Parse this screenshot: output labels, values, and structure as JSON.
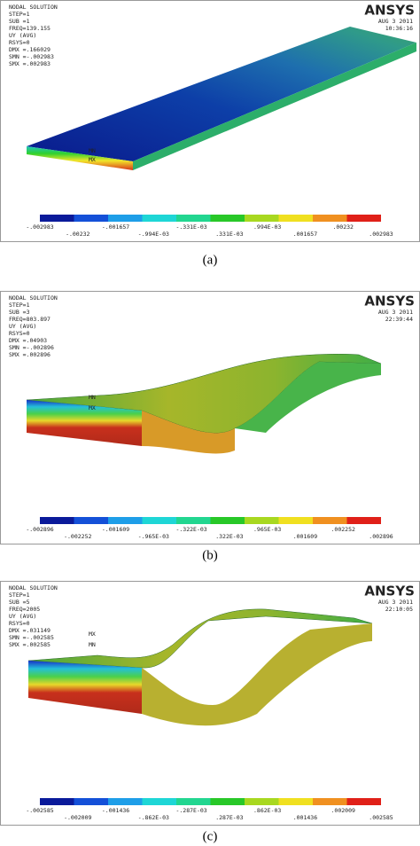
{
  "panels": [
    {
      "caption": "(a)",
      "logo": "ANSYS",
      "date": "AUG 3 2011",
      "time": "10:36:16",
      "header": [
        "NODAL SOLUTION",
        "STEP=1",
        "SUB =1",
        "FREQ=139.155",
        "UY (AVG)",
        "RSYS=0",
        "DMX =.166029",
        "SMN =-.002983",
        "SMX =.002983"
      ],
      "node_labels": [
        "MN",
        "MX"
      ],
      "legend": [
        "-.002983",
        "-.00232",
        "-.001657",
        "-.994E-03",
        "-.331E-03",
        ".331E-03",
        ".994E-03",
        ".001657",
        ".00232",
        ".002983"
      ]
    },
    {
      "caption": "(b)",
      "logo": "ANSYS",
      "date": "AUG 3 2011",
      "time": "22:39:44",
      "header": [
        "NODAL SOLUTION",
        "STEP=1",
        "SUB =3",
        "FREQ=803.897",
        "UY (AVG)",
        "RSYS=0",
        "DMX =.04903",
        "SMN =-.002896",
        "SMX =.002896"
      ],
      "node_labels": [
        "MN",
        "MX"
      ],
      "legend": [
        "-.002896",
        "-.002252",
        "-.001609",
        "-.965E-03",
        "-.322E-03",
        ".322E-03",
        ".965E-03",
        ".001609",
        ".002252",
        ".002896"
      ]
    },
    {
      "caption": "(c)",
      "logo": "ANSYS",
      "date": "AUG 3 2011",
      "time": "22:10:05",
      "header": [
        "NODAL SOLUTION",
        "STEP=1",
        "SUB =5",
        "FREQ=2005",
        "UY (AVG)",
        "RSYS=0",
        "DMX =.031149",
        "SMN =-.002585",
        "SMX =.002585"
      ],
      "node_labels": [
        "MX",
        "MN"
      ],
      "legend": [
        "-.002585",
        "-.002009",
        "-.001436",
        "-.862E-03",
        "-.287E-03",
        ".287E-03",
        ".862E-03",
        ".001436",
        ".002009",
        ".002585"
      ]
    }
  ]
}
